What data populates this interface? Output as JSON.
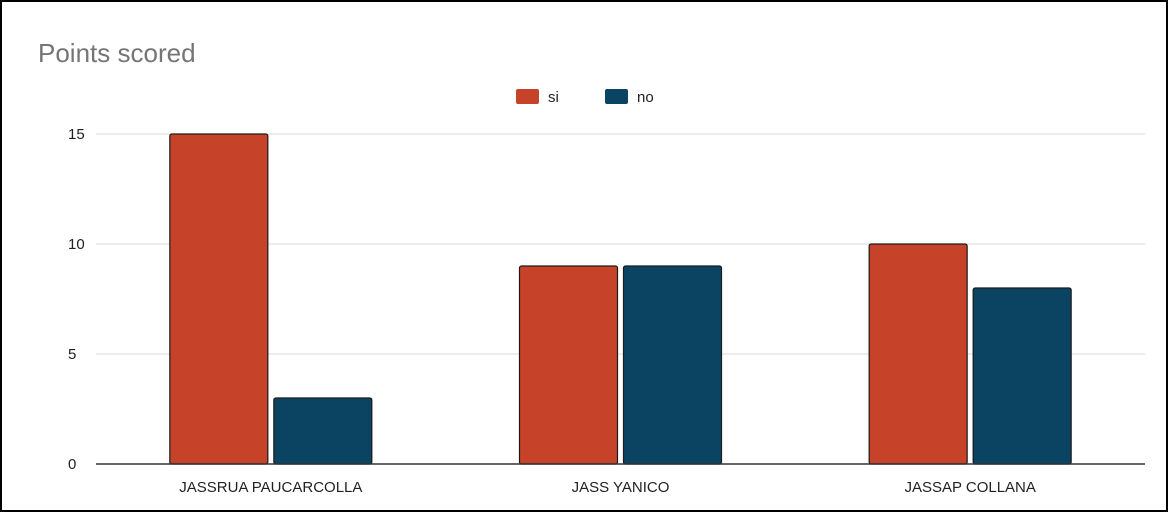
{
  "chart_data": {
    "type": "bar",
    "title": "Points scored",
    "xlabel": "",
    "ylabel": "",
    "categories": [
      "JASSRUA PAUCARCOLLA",
      "JASS YANICO",
      "JASSAP COLLANA"
    ],
    "series": [
      {
        "name": "si",
        "values": [
          15,
          9,
          10
        ],
        "color": "#c6432a"
      },
      {
        "name": "no",
        "values": [
          3,
          9,
          8
        ],
        "color": "#0b4463"
      }
    ],
    "ylim": [
      0,
      15
    ],
    "yticks": [
      "0",
      "5",
      "10",
      "15"
    ],
    "grid": true,
    "legend": "top-center"
  }
}
